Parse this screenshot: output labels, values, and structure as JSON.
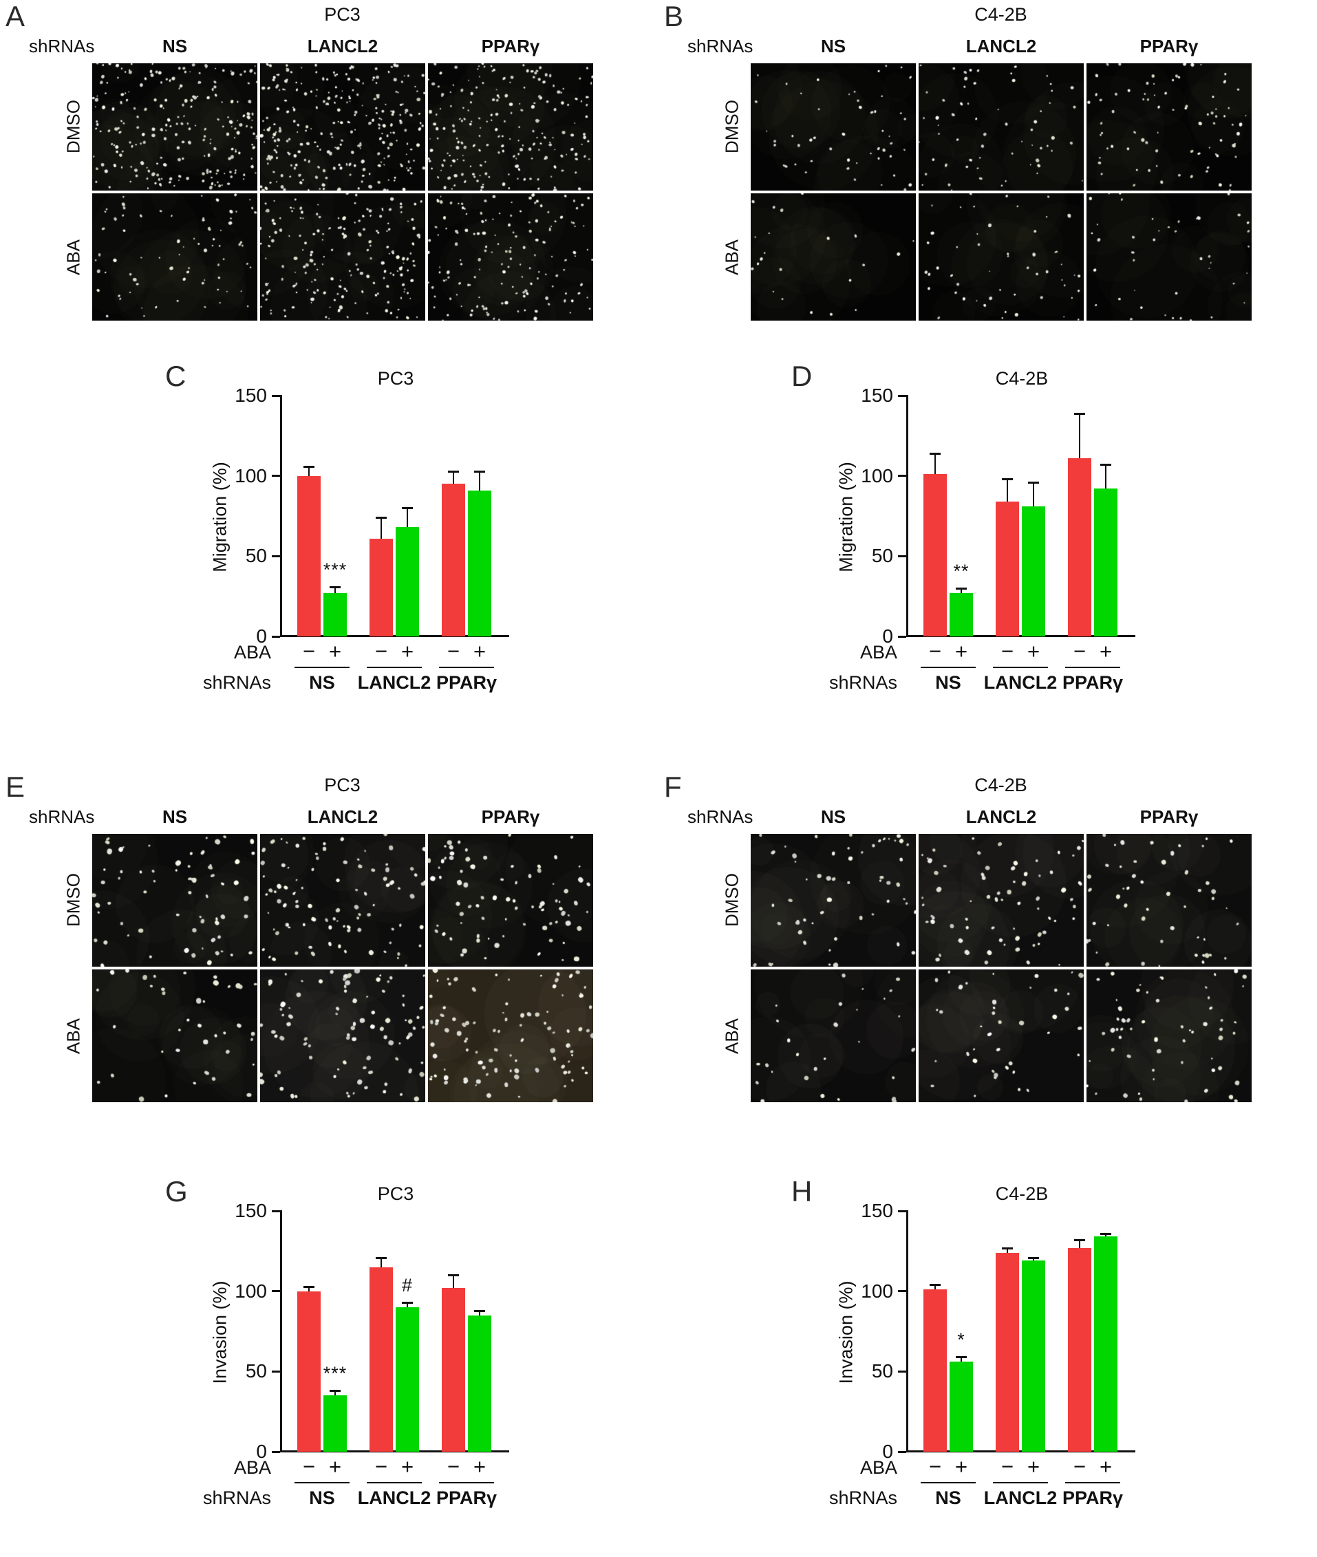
{
  "figure": {
    "panels": {
      "A": {
        "letter": "A",
        "title": "PC3",
        "shrna_label": "shRNAs",
        "columns": [
          "NS",
          "LANCL2",
          "PPARγ"
        ],
        "rows": [
          "DMSO",
          "ABA"
        ],
        "dot_size": 1.8,
        "cells": [
          [
            {
              "dots": 230,
              "bg": "#060606",
              "haze": 0.08
            },
            {
              "dots": 265,
              "bg": "#060606",
              "haze": 0.08
            },
            {
              "dots": 205,
              "bg": "#060606",
              "haze": 0.08
            }
          ],
          [
            {
              "dots": 75,
              "bg": "#050505",
              "haze": 0.05
            },
            {
              "dots": 185,
              "bg": "#060606",
              "haze": 0.08
            },
            {
              "dots": 150,
              "bg": "#060606",
              "haze": 0.08
            }
          ]
        ]
      },
      "B": {
        "letter": "B",
        "title": "C4-2B",
        "shrna_label": "shRNAs",
        "columns": [
          "NS",
          "LANCL2",
          "PPARγ"
        ],
        "rows": [
          "DMSO",
          "ABA"
        ],
        "dot_size": 1.8,
        "cells": [
          [
            {
              "dots": 50,
              "bg": "#040404",
              "haze": 0.04
            },
            {
              "dots": 62,
              "bg": "#040404",
              "haze": 0.04
            },
            {
              "dots": 78,
              "bg": "#040404",
              "haze": 0.04
            }
          ],
          [
            {
              "dots": 22,
              "bg": "#040404",
              "haze": 0.03
            },
            {
              "dots": 52,
              "bg": "#040404",
              "haze": 0.04
            },
            {
              "dots": 42,
              "bg": "#040404",
              "haze": 0.04
            }
          ]
        ]
      },
      "E": {
        "letter": "E",
        "title": "PC3",
        "shrna_label": "shRNAs",
        "columns": [
          "NS",
          "LANCL2",
          "PPARγ"
        ],
        "rows": [
          "DMSO",
          "ABA"
        ],
        "dot_size": 2.6,
        "cells": [
          [
            {
              "dots": 65,
              "bg": "#0b0b0b",
              "haze": 0.15
            },
            {
              "dots": 95,
              "bg": "#0d0d0d",
              "haze": 0.2
            },
            {
              "dots": 80,
              "bg": "#0b0b0b",
              "haze": 0.15
            }
          ],
          [
            {
              "dots": 40,
              "bg": "#0a0a0a",
              "haze": 0.15
            },
            {
              "dots": 88,
              "bg": "#121212",
              "haze": 0.35
            },
            {
              "dots": 95,
              "bg": "#2b2418",
              "haze": 0.55
            }
          ]
        ]
      },
      "F": {
        "letter": "F",
        "title": "C4-2B",
        "shrna_label": "shRNAs",
        "columns": [
          "NS",
          "LANCL2",
          "PPARγ"
        ],
        "rows": [
          "DMSO",
          "ABA"
        ],
        "dot_size": 2.4,
        "cells": [
          [
            {
              "dots": 55,
              "bg": "#0d0d0d",
              "haze": 0.25
            },
            {
              "dots": 68,
              "bg": "#0e0e0e",
              "haze": 0.3
            },
            {
              "dots": 50,
              "bg": "#0d0d0d",
              "haze": 0.25
            }
          ],
          [
            {
              "dots": 28,
              "bg": "#0c0c0c",
              "haze": 0.25
            },
            {
              "dots": 40,
              "bg": "#0d0d0d",
              "haze": 0.3
            },
            {
              "dots": 58,
              "bg": "#0d0d0d",
              "haze": 0.25
            }
          ]
        ]
      }
    }
  },
  "chart_data": [
    {
      "panel": "C",
      "type": "bar",
      "title": "PC3",
      "ylabel": "Migration (%)",
      "ylim": [
        0,
        150
      ],
      "yticks": [
        0,
        50,
        100,
        150
      ],
      "grid": false,
      "legend": "none",
      "categories": [
        "NS",
        "LANCL2",
        "PPARγ"
      ],
      "series": [
        {
          "name": "DMSO",
          "aba": "−",
          "color": "#f23b3b",
          "values": [
            100,
            61,
            95
          ],
          "errors": [
            6,
            13,
            8
          ]
        },
        {
          "name": "ABA",
          "aba": "+",
          "color": "#00d600",
          "values": [
            27,
            68,
            91
          ],
          "errors": [
            4,
            12,
            12
          ]
        }
      ],
      "significance": [
        {
          "group": 0,
          "series": 1,
          "label": "***"
        }
      ],
      "xrow1_label": "ABA",
      "xrow2_label": "shRNAs"
    },
    {
      "panel": "D",
      "type": "bar",
      "title": "C4-2B",
      "ylabel": "Migration (%)",
      "ylim": [
        0,
        150
      ],
      "yticks": [
        0,
        50,
        100,
        150
      ],
      "grid": false,
      "legend": "none",
      "categories": [
        "NS",
        "LANCL2",
        "PPARγ"
      ],
      "series": [
        {
          "name": "DMSO",
          "aba": "−",
          "color": "#f23b3b",
          "values": [
            101,
            84,
            111
          ],
          "errors": [
            13,
            14,
            28
          ]
        },
        {
          "name": "ABA",
          "aba": "+",
          "color": "#00d600",
          "values": [
            27,
            81,
            92
          ],
          "errors": [
            3,
            15,
            15
          ]
        }
      ],
      "significance": [
        {
          "group": 0,
          "series": 1,
          "label": "**"
        }
      ],
      "xrow1_label": "ABA",
      "xrow2_label": "shRNAs"
    },
    {
      "panel": "G",
      "type": "bar",
      "title": "PC3",
      "ylabel": "Invasion (%)",
      "ylim": [
        0,
        150
      ],
      "yticks": [
        0,
        50,
        100,
        150
      ],
      "grid": false,
      "legend": "none",
      "categories": [
        "NS",
        "LANCL2",
        "PPARγ"
      ],
      "series": [
        {
          "name": "DMSO",
          "aba": "−",
          "color": "#f23b3b",
          "values": [
            100,
            115,
            102
          ],
          "errors": [
            3,
            6,
            8
          ]
        },
        {
          "name": "ABA",
          "aba": "+",
          "color": "#00d600",
          "values": [
            35,
            90,
            85
          ],
          "errors": [
            3,
            3,
            3
          ]
        }
      ],
      "significance": [
        {
          "group": 0,
          "series": 1,
          "label": "***"
        },
        {
          "group": 1,
          "series": 1,
          "label": "#"
        }
      ],
      "xrow1_label": "ABA",
      "xrow2_label": "shRNAs"
    },
    {
      "panel": "H",
      "type": "bar",
      "title": "C4-2B",
      "ylabel": "Invasion (%)",
      "ylim": [
        0,
        150
      ],
      "yticks": [
        0,
        50,
        100,
        150
      ],
      "grid": false,
      "legend": "none",
      "categories": [
        "NS",
        "LANCL2",
        "PPARγ"
      ],
      "series": [
        {
          "name": "DMSO",
          "aba": "−",
          "color": "#f23b3b",
          "values": [
            101,
            124,
            127
          ],
          "errors": [
            3,
            3,
            5
          ]
        },
        {
          "name": "ABA",
          "aba": "+",
          "color": "#00d600",
          "values": [
            56,
            119,
            134
          ],
          "errors": [
            3,
            2,
            2
          ]
        }
      ],
      "significance": [
        {
          "group": 0,
          "series": 1,
          "label": "*"
        }
      ],
      "xrow1_label": "ABA",
      "xrow2_label": "shRNAs"
    }
  ]
}
